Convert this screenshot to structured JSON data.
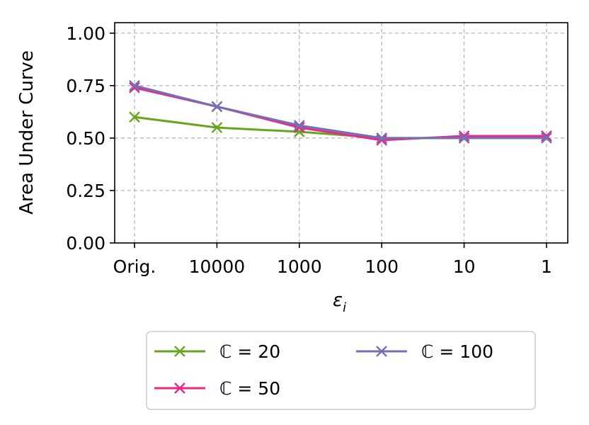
{
  "chart_data": {
    "type": "line",
    "categories": [
      "Orig.",
      "10000",
      "1000",
      "100",
      "10",
      "1"
    ],
    "xlabel": "ε",
    "xlabel_subscript": "i",
    "ylabel": "Area Under Curve",
    "ylim": [
      0.0,
      1.05
    ],
    "yticks": [
      0.0,
      0.25,
      0.5,
      0.75,
      1.0
    ],
    "ytick_labels": [
      "0.00",
      "0.25",
      "0.50",
      "0.75",
      "1.00"
    ],
    "grid": true,
    "legend_position": "bottom-center outside",
    "legend_columns": 2,
    "marker": "x",
    "series": [
      {
        "name": "ℂ = 20",
        "color": "#66a61e",
        "values": [
          0.6,
          0.55,
          0.53,
          0.5,
          0.5,
          0.51
        ]
      },
      {
        "name": "ℂ = 50",
        "color": "#e7298a",
        "values": [
          0.74,
          0.65,
          0.55,
          0.49,
          0.51,
          0.51
        ]
      },
      {
        "name": "ℂ = 100",
        "color": "#7570b3",
        "values": [
          0.75,
          0.65,
          0.56,
          0.5,
          0.5,
          0.5
        ]
      }
    ]
  }
}
